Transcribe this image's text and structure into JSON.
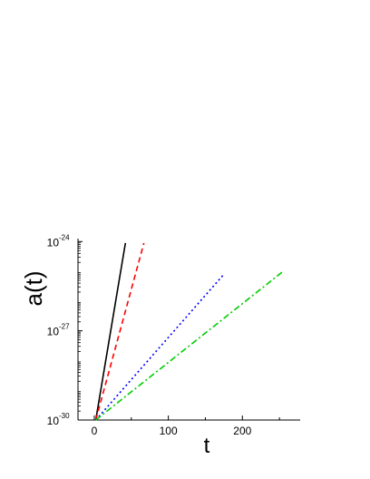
{
  "chart_data": {
    "type": "line",
    "title": "",
    "xlabel": "t",
    "ylabel": "a(t)",
    "xlim": [
      -22,
      278
    ],
    "ylim": [
      -30,
      -23.9
    ],
    "y_scale": "log",
    "y_tick_base": "10",
    "grid": false,
    "legend": "none",
    "x_ticks": [
      {
        "value": 0,
        "label": "0"
      },
      {
        "value": 100,
        "label": "100"
      },
      {
        "value": 200,
        "label": "200"
      }
    ],
    "y_ticks": [
      {
        "value": -30,
        "exponent": "-30"
      },
      {
        "value": -27,
        "exponent": "-27"
      },
      {
        "value": -24,
        "exponent": "-24"
      }
    ],
    "series": [
      {
        "color": "#000000",
        "dash": "solid",
        "x": [
          2,
          42
        ],
        "y": [
          -30,
          -24.05
        ]
      },
      {
        "color": "#ff0000",
        "dash": "dashed",
        "x": [
          2,
          67
        ],
        "y": [
          -30,
          -24.05
        ]
      },
      {
        "color": "#0000ff",
        "dash": "dotted",
        "x": [
          2,
          175
        ],
        "y": [
          -30,
          -25.1
        ]
      },
      {
        "color": "#00cc00",
        "dash": "dashdot",
        "x": [
          2,
          255
        ],
        "y": [
          -30,
          -25.0
        ]
      }
    ]
  }
}
